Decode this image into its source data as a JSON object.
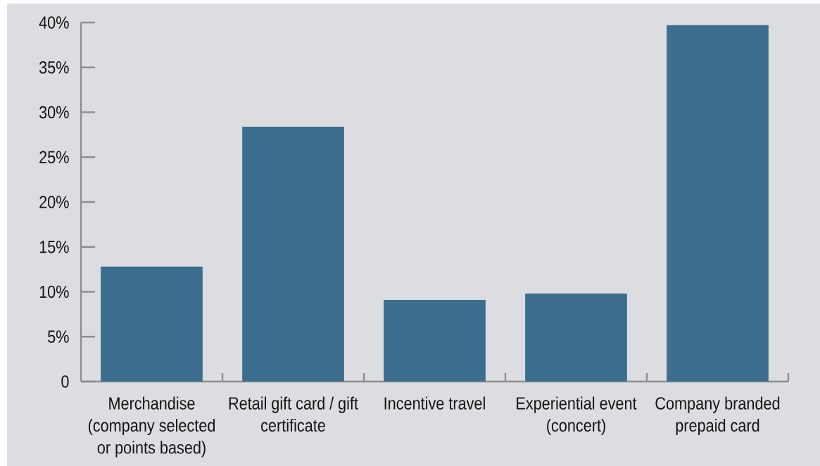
{
  "chart_data": {
    "type": "bar",
    "categories": [
      "Merchandise (company selected or points based)",
      "Retail gift card / gift certificate",
      "Incentive travel",
      "Experiential event (concert)",
      "Company branded prepaid card"
    ],
    "values": [
      12.8,
      28.4,
      9.1,
      9.8,
      39.7
    ],
    "color": "#3c6e8f",
    "ylim": [
      0,
      40
    ],
    "yticks": [
      0,
      {
        "value": 5,
        "label": "5%"
      },
      {
        "value": 10,
        "label": "10%"
      },
      {
        "value": 15,
        "label": "15%"
      },
      {
        "value": 20,
        "label": "20%"
      },
      {
        "value": 25,
        "label": "25%"
      },
      {
        "value": 30,
        "label": "30%"
      },
      {
        "value": 35,
        "label": "35%"
      },
      {
        "value": 40,
        "label": "40%"
      }
    ]
  }
}
